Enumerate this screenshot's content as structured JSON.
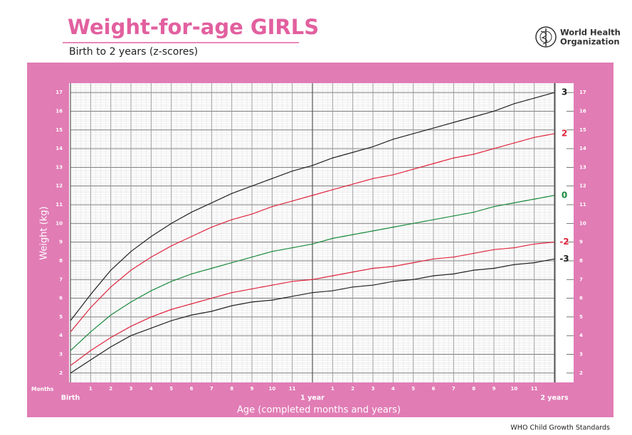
{
  "chart_data": {
    "type": "line",
    "title": "Weight-for-age GIRLS",
    "subtitle": "Birth to 2 years (z-scores)",
    "organization": [
      "World Health",
      "Organization"
    ],
    "footer": "WHO Child Growth Standards",
    "x_label": "Age (completed months and years)",
    "x_unit_label": "Months",
    "y_label": "Weight (kg)",
    "x": [
      0,
      1,
      2,
      3,
      4,
      5,
      6,
      7,
      8,
      9,
      10,
      11,
      12,
      13,
      14,
      15,
      16,
      17,
      18,
      19,
      20,
      21,
      22,
      23,
      24
    ],
    "xlim": [
      0,
      24
    ],
    "xticks": [
      {
        "value": 0,
        "label": "Birth"
      },
      1,
      2,
      3,
      4,
      5,
      6,
      7,
      8,
      9,
      10,
      11,
      {
        "value": 12,
        "label": "1 year"
      },
      {
        "value": 13,
        "label": "1"
      },
      {
        "value": 14,
        "label": "2"
      },
      {
        "value": 15,
        "label": "3"
      },
      {
        "value": 16,
        "label": "4"
      },
      {
        "value": 17,
        "label": "5"
      },
      {
        "value": 18,
        "label": "6"
      },
      {
        "value": 19,
        "label": "7"
      },
      {
        "value": 20,
        "label": "8"
      },
      {
        "value": 21,
        "label": "9"
      },
      {
        "value": 22,
        "label": "10"
      },
      {
        "value": 23,
        "label": "11"
      },
      {
        "value": 24,
        "label": "2 years"
      }
    ],
    "ylim": [
      1.5,
      17.5
    ],
    "yticks": [
      2,
      3,
      4,
      5,
      6,
      7,
      8,
      9,
      10,
      11,
      12,
      13,
      14,
      15,
      16,
      17
    ],
    "grid": true,
    "series": [
      {
        "name": "3",
        "color": "#222222",
        "values": [
          4.8,
          6.2,
          7.5,
          8.5,
          9.3,
          10.0,
          10.6,
          11.1,
          11.6,
          12.0,
          12.4,
          12.8,
          13.1,
          13.5,
          13.8,
          14.1,
          14.5,
          14.8,
          15.1,
          15.4,
          15.7,
          16.0,
          16.4,
          16.7,
          17.0
        ]
      },
      {
        "name": "2",
        "color": "#e0243c",
        "values": [
          4.2,
          5.5,
          6.6,
          7.5,
          8.2,
          8.8,
          9.3,
          9.8,
          10.2,
          10.5,
          10.9,
          11.2,
          11.5,
          11.8,
          12.1,
          12.4,
          12.6,
          12.9,
          13.2,
          13.5,
          13.7,
          14.0,
          14.3,
          14.6,
          14.8
        ]
      },
      {
        "name": "0",
        "color": "#1a8a3c",
        "values": [
          3.2,
          4.2,
          5.1,
          5.8,
          6.4,
          6.9,
          7.3,
          7.6,
          7.9,
          8.2,
          8.5,
          8.7,
          8.9,
          9.2,
          9.4,
          9.6,
          9.8,
          10.0,
          10.2,
          10.4,
          10.6,
          10.9,
          11.1,
          11.3,
          11.5
        ]
      },
      {
        "name": "-2",
        "color": "#e0243c",
        "values": [
          2.4,
          3.2,
          3.9,
          4.5,
          5.0,
          5.4,
          5.7,
          6.0,
          6.3,
          6.5,
          6.7,
          6.9,
          7.0,
          7.2,
          7.4,
          7.6,
          7.7,
          7.9,
          8.1,
          8.2,
          8.4,
          8.6,
          8.7,
          8.9,
          9.0
        ]
      },
      {
        "name": "-3",
        "color": "#222222",
        "values": [
          2.0,
          2.7,
          3.4,
          4.0,
          4.4,
          4.8,
          5.1,
          5.3,
          5.6,
          5.8,
          5.9,
          6.1,
          6.3,
          6.4,
          6.6,
          6.7,
          6.9,
          7.0,
          7.2,
          7.3,
          7.5,
          7.6,
          7.8,
          7.9,
          8.1
        ]
      }
    ]
  }
}
